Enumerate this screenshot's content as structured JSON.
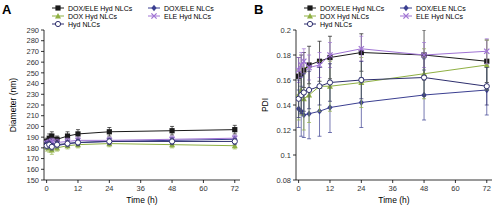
{
  "chart_data": [
    {
      "type": "line",
      "title": "A",
      "x_label": "Time (h)",
      "y_label": "Diameter (nm)",
      "x": [
        0,
        1,
        2,
        4,
        8,
        12,
        24,
        48,
        72
      ],
      "xlim": [
        -1,
        74
      ],
      "xticks": [
        0,
        12,
        24,
        36,
        48,
        60,
        72
      ],
      "ylim": [
        150,
        290
      ],
      "yticks": [
        150,
        160,
        170,
        180,
        190,
        200,
        210,
        220,
        230,
        240,
        250,
        260,
        270,
        280,
        290
      ],
      "legend": "top",
      "series": [
        {
          "name": "DOX/ELE Hyd NLCs",
          "color": "#1a1a1a",
          "marker": "square",
          "values": [
            186,
            189,
            191,
            188,
            191,
            193,
            195,
            196,
            197
          ],
          "errors": [
            3,
            4,
            4,
            3,
            4,
            4,
            4,
            4,
            4
          ]
        },
        {
          "name": "DOX/ELE NLCs",
          "color": "#3b3f91",
          "marker": "diamond",
          "values": [
            183,
            183,
            184,
            182,
            184,
            185,
            186,
            187,
            188
          ],
          "errors": [
            3,
            3,
            3,
            3,
            3,
            3,
            3,
            3,
            3
          ]
        },
        {
          "name": "DOX Hyd NLCs",
          "color": "#8fb043",
          "marker": "triangle",
          "values": [
            181,
            180,
            178,
            180,
            182,
            183,
            184,
            183,
            182
          ],
          "errors": [
            4,
            4,
            4,
            3,
            3,
            3,
            3,
            3,
            3
          ]
        },
        {
          "name": "ELE Hyd NLCs",
          "color": "#a074d4",
          "marker": "x",
          "values": [
            184,
            185,
            186,
            185,
            186,
            187,
            187,
            188,
            189
          ],
          "errors": [
            3,
            3,
            3,
            3,
            3,
            3,
            3,
            3,
            3
          ]
        },
        {
          "name": "Hyd NLCs",
          "color": "#2e2f6e",
          "marker": "open-circle",
          "values": [
            182,
            183,
            181,
            183,
            184,
            185,
            186,
            186,
            186
          ],
          "errors": [
            3,
            3,
            3,
            3,
            3,
            3,
            3,
            3,
            3
          ]
        }
      ]
    },
    {
      "type": "line",
      "title": "B",
      "x_label": "Time (h)",
      "y_label": "PDI",
      "x": [
        0,
        1,
        2,
        4,
        8,
        12,
        24,
        48,
        72
      ],
      "xlim": [
        -1,
        74
      ],
      "xticks": [
        0,
        12,
        24,
        36,
        48,
        60,
        72
      ],
      "ylim": [
        0.08,
        0.2
      ],
      "yticks": [
        0.08,
        0.1,
        0.12,
        0.14,
        0.16,
        0.18,
        0.2
      ],
      "legend": "top",
      "series": [
        {
          "name": "DOX/ELE Hyd NLCs",
          "color": "#1a1a1a",
          "marker": "square",
          "values": [
            0.163,
            0.165,
            0.168,
            0.172,
            0.175,
            0.178,
            0.182,
            0.18,
            0.175
          ],
          "errors": [
            0.015,
            0.015,
            0.014,
            0.015,
            0.016,
            0.017,
            0.015,
            0.02,
            0.017
          ]
        },
        {
          "name": "DOX/ELE NLCs",
          "color": "#3b3f91",
          "marker": "diamond",
          "values": [
            0.137,
            0.135,
            0.132,
            0.133,
            0.135,
            0.138,
            0.142,
            0.148,
            0.152
          ],
          "errors": [
            0.015,
            0.02,
            0.018,
            0.02,
            0.02,
            0.02,
            0.02,
            0.02,
            0.02
          ]
        },
        {
          "name": "DOX Hyd NLCs",
          "color": "#8fb043",
          "marker": "triangle",
          "values": [
            0.148,
            0.152,
            0.145,
            0.148,
            0.155,
            0.155,
            0.158,
            0.165,
            0.172
          ],
          "errors": [
            0.02,
            0.02,
            0.025,
            0.022,
            0.02,
            0.02,
            0.02,
            0.02,
            0.02
          ]
        },
        {
          "name": "ELE Hyd NLCs",
          "color": "#a074d4",
          "marker": "x",
          "values": [
            0.168,
            0.172,
            0.175,
            0.17,
            0.172,
            0.18,
            0.185,
            0.18,
            0.183
          ],
          "errors": [
            0.01,
            0.01,
            0.01,
            0.01,
            0.01,
            0.01,
            0.01,
            0.01,
            0.01
          ]
        },
        {
          "name": "Hyd NLCs",
          "color": "#2e2f6e",
          "marker": "open-circle",
          "values": [
            0.145,
            0.148,
            0.15,
            0.152,
            0.155,
            0.158,
            0.16,
            0.162,
            0.155
          ],
          "errors": [
            0.015,
            0.015,
            0.015,
            0.015,
            0.015,
            0.015,
            0.015,
            0.015,
            0.015
          ]
        }
      ]
    }
  ]
}
